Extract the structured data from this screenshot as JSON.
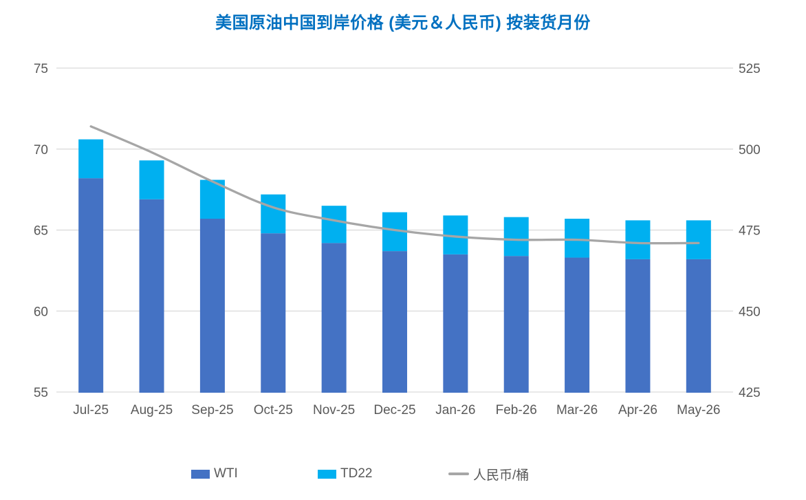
{
  "colors": {
    "title": "#0070C0",
    "axis_text": "#595959",
    "grid": "#D9D9D9",
    "background": "#FFFFFF",
    "wti_bar": "#4472C4",
    "td22_bar": "#00B0F0",
    "rmb_line": "#A6A6A6"
  },
  "chart_data": {
    "type": "bar",
    "subtype": "stacked-bar-with-line-combo",
    "title": "美国原油中国到岸价格 (美元＆人民币) 按装货月份",
    "categories": [
      "Jul-25",
      "Aug-25",
      "Sep-25",
      "Oct-25",
      "Nov-25",
      "Dec-25",
      "Jan-26",
      "Feb-26",
      "Mar-26",
      "Apr-26",
      "May-26"
    ],
    "series": [
      {
        "name": "WTI",
        "type": "bar",
        "axis": "left",
        "color": "#4472C4",
        "values": [
          68.2,
          66.9,
          65.7,
          64.8,
          64.2,
          63.7,
          63.5,
          63.4,
          63.3,
          63.2,
          63.2
        ]
      },
      {
        "name": "TD22",
        "type": "bar",
        "axis": "left",
        "color": "#00B0F0",
        "values": [
          2.4,
          2.4,
          2.4,
          2.4,
          2.3,
          2.4,
          2.4,
          2.4,
          2.4,
          2.4,
          2.4
        ]
      },
      {
        "name": "人民币/桶",
        "type": "line",
        "axis": "right",
        "color": "#A6A6A6",
        "values": [
          507,
          499,
          490,
          482,
          478,
          475,
          473,
          472,
          472,
          471,
          471
        ]
      }
    ],
    "stacked_totals": [
      70.6,
      69.3,
      68.1,
      67.2,
      66.5,
      66.1,
      65.9,
      65.8,
      65.7,
      65.6,
      65.6
    ],
    "left_axis": {
      "min": 55,
      "max": 75,
      "ticks": [
        55,
        60,
        65,
        70,
        75
      ]
    },
    "right_axis": {
      "min": 425,
      "max": 525,
      "ticks": [
        425,
        450,
        475,
        500,
        525
      ]
    },
    "grid": true,
    "legend_position": "bottom"
  }
}
